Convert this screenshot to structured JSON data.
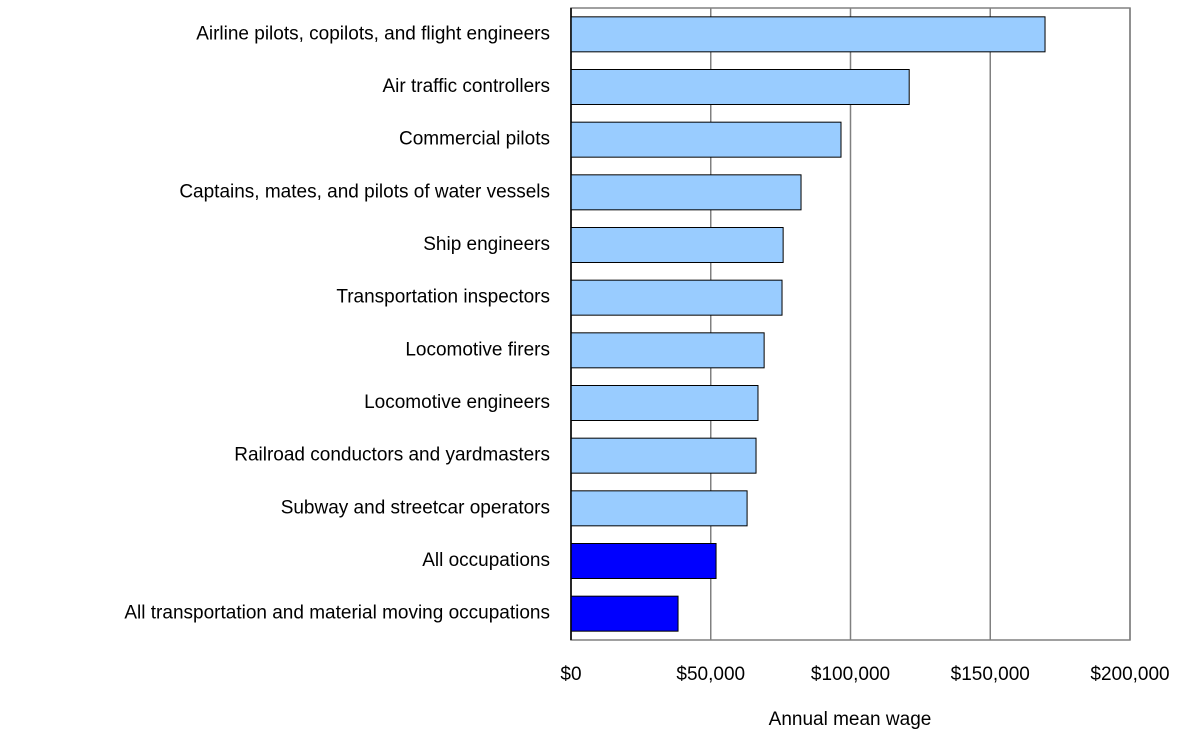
{
  "chart_data": {
    "type": "bar",
    "orientation": "horizontal",
    "x_label": "Annual mean wage",
    "categories": [
      "Airline pilots, copilots, and flight engineers",
      "Air traffic controllers",
      "Commercial pilots",
      "Captains, mates, and pilots of water vessels",
      "Ship engineers",
      "Transportation inspectors",
      "Locomotive firers",
      "Locomotive engineers",
      "Railroad conductors and yardmasters",
      "Subway and streetcar operators",
      "All occupations",
      "All transportation and material moving occupations"
    ],
    "values": [
      169600,
      121000,
      96600,
      82300,
      75900,
      75500,
      69100,
      66900,
      66200,
      63000,
      51900,
      38300
    ],
    "colors": [
      "#99ccff",
      "#99ccff",
      "#99ccff",
      "#99ccff",
      "#99ccff",
      "#99ccff",
      "#99ccff",
      "#99ccff",
      "#99ccff",
      "#99ccff",
      "#0000ff",
      "#0000ff"
    ],
    "xlim": [
      0,
      200000
    ],
    "xticks": [
      {
        "value": 0,
        "label": "$0"
      },
      {
        "value": 50000,
        "label": "$50,000"
      },
      {
        "value": 100000,
        "label": "$100,000"
      },
      {
        "value": 150000,
        "label": "$150,000"
      },
      {
        "value": 200000,
        "label": "$200,000"
      }
    ],
    "grid": true
  }
}
